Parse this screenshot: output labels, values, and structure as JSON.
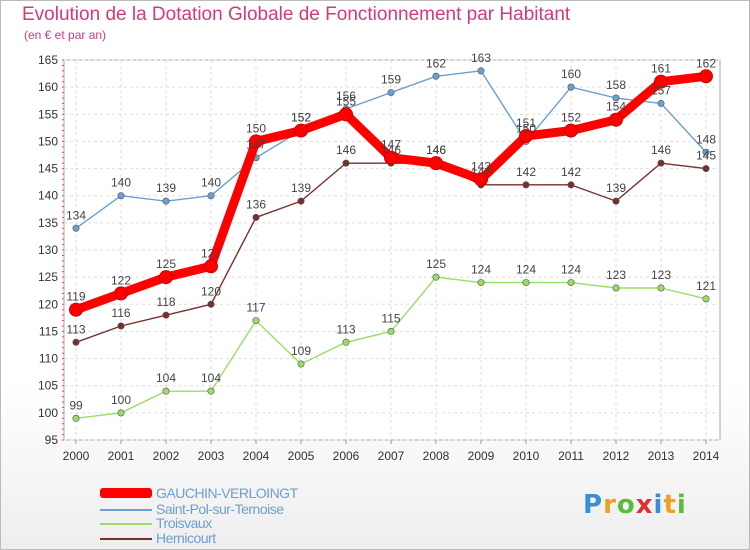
{
  "header": {
    "title": "Evolution de la Dotation Globale de Fonctionnement par Habitant",
    "subtitle": "(en € et par an)"
  },
  "logo": {
    "text": "Proxiti"
  },
  "chart_data": {
    "type": "line",
    "title": "Evolution de la Dotation Globale de Fonctionnement par Habitant",
    "ylabel": "(en € et par an)",
    "xlabel": "",
    "x": [
      2000,
      2001,
      2002,
      2003,
      2004,
      2005,
      2006,
      2007,
      2008,
      2009,
      2010,
      2011,
      2012,
      2013,
      2014
    ],
    "ylim": [
      95,
      165
    ],
    "yticks": [
      95,
      100,
      105,
      110,
      115,
      120,
      125,
      130,
      135,
      140,
      145,
      150,
      155,
      160,
      165
    ],
    "grid": true,
    "legend": "bottom-left",
    "series": [
      {
        "name": "GAUCHIN-VERLOINGT",
        "color": "#ff0000",
        "values": [
          119,
          122,
          125,
          127,
          150,
          152,
          155,
          147,
          146,
          143,
          151,
          152,
          154,
          161,
          162
        ]
      },
      {
        "name": "Saint-Pol-sur-Ternoise",
        "color": "#6b9fcf",
        "values": [
          134,
          140,
          139,
          140,
          147,
          152,
          156,
          159,
          162,
          163,
          150,
          160,
          158,
          157,
          148
        ]
      },
      {
        "name": "Troisvaux",
        "color": "#99dd66",
        "values": [
          99,
          100,
          104,
          104,
          117,
          109,
          113,
          115,
          125,
          124,
          124,
          124,
          123,
          123,
          121
        ]
      },
      {
        "name": "Hernicourt",
        "color": "#7a2e2e",
        "values": [
          113,
          116,
          118,
          120,
          136,
          139,
          146,
          146,
          146,
          142,
          142,
          142,
          139,
          146,
          145
        ]
      }
    ]
  }
}
